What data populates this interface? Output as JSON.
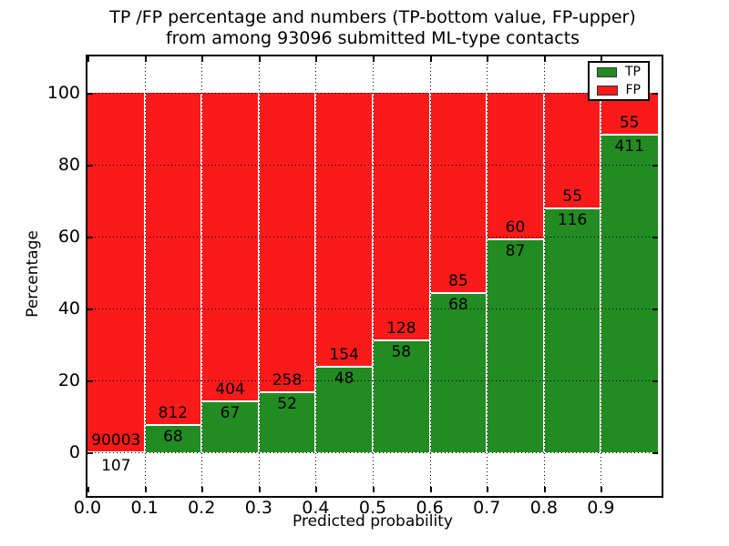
{
  "title": {
    "line1": "TP /FP percentage and numbers (TP-bottom value, FP-upper)",
    "line2": "from among 93096 submitted ML-type contacts"
  },
  "x_axis": {
    "label": "Predicted probability",
    "tick_labels": [
      "0.0",
      "0.1",
      "0.2",
      "0.3",
      "0.4",
      "0.5",
      "0.6",
      "0.7",
      "0.8",
      "0.9"
    ],
    "tick_values": [
      0.0,
      0.1,
      0.2,
      0.3,
      0.4,
      0.5,
      0.6,
      0.7,
      0.8,
      0.9
    ]
  },
  "y_axis": {
    "label": "Percentage",
    "tick_labels": [
      "0",
      "20",
      "40",
      "60",
      "80",
      "100"
    ],
    "tick_values": [
      0,
      20,
      40,
      60,
      80,
      100
    ]
  },
  "legend": {
    "entries": [
      {
        "label": "TP",
        "color": "#228B22"
      },
      {
        "label": "FP",
        "color": "#FA1A1A"
      }
    ]
  },
  "colors": {
    "tp_green": "#228B22",
    "fp_red": "#FA1A1A",
    "background": "#ffffff",
    "text": "#000000"
  },
  "chart_data": {
    "type": "bar",
    "stacked": true,
    "title": "TP /FP percentage and numbers (TP-bottom value, FP-upper) from among 93096 submitted ML-type contacts",
    "xlabel": "Predicted probability",
    "ylabel": "Percentage",
    "total_contacts": 93096,
    "categories": [
      "0.0-0.1",
      "0.1-0.2",
      "0.2-0.3",
      "0.3-0.4",
      "0.4-0.5",
      "0.5-0.6",
      "0.6-0.7",
      "0.7-0.8",
      "0.8-0.9",
      "0.9-1.0"
    ],
    "bin_start": [
      0.0,
      0.1,
      0.2,
      0.3,
      0.4,
      0.5,
      0.6,
      0.7,
      0.8,
      0.9
    ],
    "bin_width": 0.1,
    "series": [
      {
        "name": "TP",
        "color": "#228B22",
        "counts": [
          107,
          68,
          67,
          52,
          48,
          58,
          68,
          87,
          116,
          411
        ],
        "percent": [
          0.12,
          7.73,
          14.23,
          16.77,
          23.76,
          31.18,
          44.44,
          59.18,
          67.84,
          88.2
        ]
      },
      {
        "name": "FP",
        "color": "#FA1A1A",
        "counts": [
          90003,
          812,
          404,
          258,
          154,
          128,
          85,
          60,
          55,
          55
        ],
        "percent": [
          99.88,
          92.27,
          85.77,
          83.23,
          76.24,
          68.82,
          55.56,
          40.82,
          32.16,
          11.8
        ]
      }
    ],
    "ylim": [
      -11,
      110
    ],
    "xlim": [
      0.0,
      1.0
    ],
    "grid": true,
    "legend_position": "upper right"
  }
}
